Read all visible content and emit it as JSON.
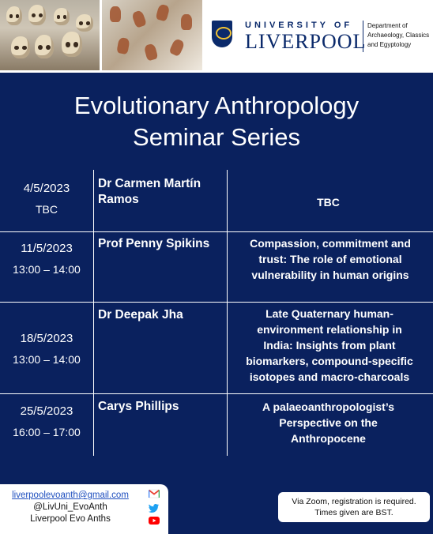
{
  "header": {
    "university_small": "UNIVERSITY OF",
    "university_big": "LIVERPOOL",
    "department_lines": [
      "Department of",
      "Archaeology, Classics",
      "and Egyptology"
    ]
  },
  "title_lines": [
    "Evolutionary Anthropology",
    "Seminar Series"
  ],
  "seminars": [
    {
      "date": "4/5/2023",
      "time": "TBC",
      "speaker_lines": [
        "Dr Carmen Martín",
        "Ramos"
      ],
      "talk_lines": [
        "TBC"
      ]
    },
    {
      "date": "11/5/2023",
      "time": "13:00 – 14:00",
      "speaker_lines": [
        "Prof Penny Spikins"
      ],
      "talk_lines": [
        "Compassion, commitment and",
        "trust: The role of emotional",
        "vulnerability in human origins"
      ]
    },
    {
      "date": "18/5/2023",
      "time": "13:00 – 14:00",
      "speaker_lines": [
        "Dr Deepak Jha"
      ],
      "talk_lines": [
        "Late Quaternary human-",
        "environment relationship in",
        "India: Insights from plant",
        "biomarkers, compound-specific",
        "isotopes and macro-charcoals"
      ]
    },
    {
      "date": "25/5/2023",
      "time": "16:00 – 17:00",
      "speaker_lines": [
        "Carys Phillips"
      ],
      "talk_lines": [
        "A palaeoanthropologist’s",
        "Perspective on the",
        "Anthropocene"
      ]
    }
  ],
  "contact": {
    "email": "liverpoolevoanth@gmail.com",
    "twitter": "@LivUni_EvoAnth",
    "youtube": "Liverpool Evo Anths"
  },
  "note_lines": [
    "Via Zoom, registration is required.",
    "Times given are BST."
  ],
  "colors": {
    "panel": "#0a215e",
    "brand": "#0b2a6b",
    "text": "#ffffff"
  }
}
